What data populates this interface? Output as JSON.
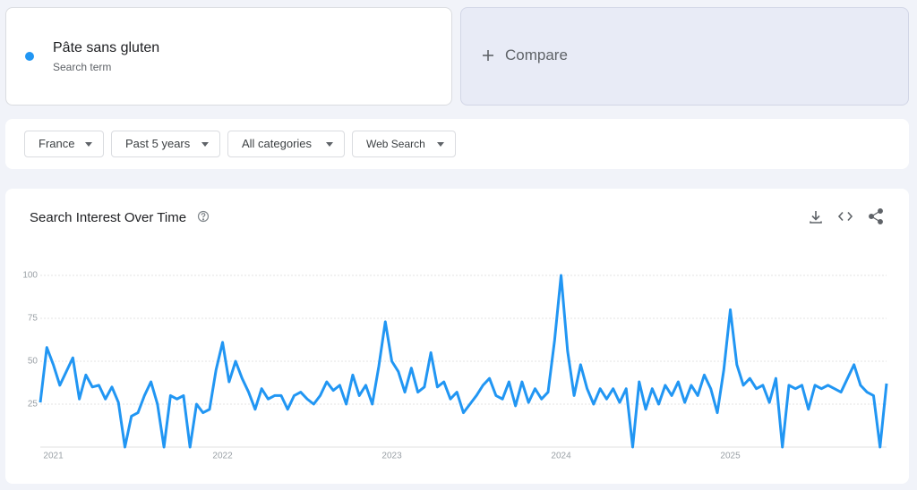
{
  "search_term": {
    "subtitle": "Search term"
  },
  "compare": "Compare",
  "filters": [
    "France",
    "Past 5 years",
    "All categories",
    "Web Search"
  ],
  "chart_data": {
    "type": "line",
    "title": "Search Interest Over Time",
    "categories": [
      null,
      null,
      "2021",
      null,
      null,
      null,
      null,
      null,
      null,
      null,
      null,
      null,
      null,
      null,
      null,
      null,
      null,
      null,
      null,
      null,
      null,
      null,
      null,
      null,
      null,
      null,
      null,
      null,
      "2022",
      null,
      null,
      null,
      null,
      null,
      null,
      null,
      null,
      null,
      null,
      null,
      null,
      null,
      null,
      null,
      null,
      null,
      null,
      null,
      null,
      null,
      null,
      null,
      null,
      null,
      "2023",
      null,
      null,
      null,
      null,
      null,
      null,
      null,
      null,
      null,
      null,
      null,
      null,
      null,
      null,
      null,
      null,
      null,
      null,
      null,
      null,
      null,
      null,
      null,
      null,
      null,
      "2024",
      null,
      null,
      null,
      null,
      null,
      null,
      null,
      null,
      null,
      null,
      null,
      null,
      null,
      null,
      null,
      null,
      null,
      null,
      null,
      null,
      null,
      null,
      null,
      null,
      null,
      "2025",
      null,
      null,
      null,
      null,
      null,
      null,
      null,
      null,
      null,
      null,
      null,
      null,
      null,
      null,
      null,
      null,
      null,
      null,
      null,
      null,
      null,
      null,
      null,
      null
    ],
    "series": [
      {
        "name": "Pâte sans gluten",
        "color": "#2196f3",
        "values": [
          26,
          58,
          48,
          36,
          44,
          52,
          28,
          42,
          35,
          36,
          28,
          35,
          26,
          0,
          18,
          20,
          30,
          38,
          25,
          0,
          30,
          28,
          30,
          0,
          25,
          20,
          22,
          45,
          61,
          38,
          50,
          40,
          32,
          22,
          34,
          28,
          30,
          30,
          22,
          30,
          32,
          28,
          25,
          30,
          38,
          33,
          36,
          25,
          42,
          30,
          36,
          25,
          47,
          73,
          50,
          44,
          32,
          46,
          32,
          35,
          55,
          35,
          38,
          28,
          32,
          20,
          25,
          30,
          36,
          40,
          30,
          28,
          38,
          24,
          38,
          26,
          34,
          28,
          32,
          62,
          100,
          56,
          30,
          48,
          34,
          25,
          34,
          28,
          34,
          26,
          34,
          0,
          38,
          22,
          34,
          25,
          36,
          30,
          38,
          26,
          36,
          30,
          42,
          34,
          20,
          45,
          80,
          48,
          36,
          40,
          34,
          36,
          26,
          40,
          0,
          36,
          34,
          36,
          22,
          36,
          34,
          36,
          34,
          32,
          40,
          48,
          36,
          32,
          30,
          0,
          37
        ]
      }
    ],
    "ylim": [
      0,
      100
    ],
    "yticks": [
      25,
      50,
      75,
      100
    ],
    "grid": true
  }
}
